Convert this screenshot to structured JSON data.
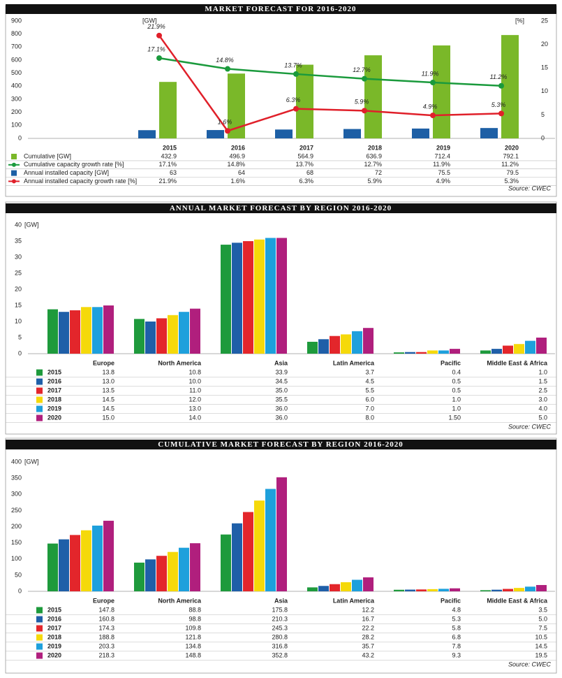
{
  "chart_data": [
    {
      "type": "combo",
      "title": "MARKET FORECAST FOR 2016-2020",
      "categories": [
        "2015",
        "2016",
        "2017",
        "2018",
        "2019",
        "2020"
      ],
      "series": [
        {
          "name": "Cumulative [GW]",
          "type": "bar",
          "color": "#7ab829",
          "values": [
            432.9,
            496.9,
            564.9,
            636.9,
            712.4,
            792.1
          ]
        },
        {
          "name": "Cumulative capacity growth rate [%]",
          "type": "line",
          "axis": "y2",
          "color": "#1a9a3c",
          "values": [
            17.1,
            14.8,
            13.7,
            12.7,
            11.9,
            11.2
          ],
          "value_labels": [
            "17.1%",
            "14.8%",
            "13.7%",
            "12.7%",
            "11.9%",
            "11.2%"
          ]
        },
        {
          "name": "Annual installed capacity [GW]",
          "type": "bar",
          "color": "#1d5fa5",
          "values": [
            63,
            64,
            68,
            72,
            75.5,
            79.5
          ]
        },
        {
          "name": "Annual installed capacity growth rate [%]",
          "type": "line",
          "axis": "y2",
          "color": "#e0202a",
          "values": [
            21.9,
            1.6,
            6.3,
            5.9,
            4.9,
            5.3
          ],
          "value_labels": [
            "21.9%",
            "1.6%",
            "6.3%",
            "5.9%",
            "4.9%",
            "5.3%"
          ]
        }
      ],
      "ylim": [
        0,
        900
      ],
      "yticks": [
        0,
        100,
        200,
        300,
        400,
        500,
        600,
        700,
        800,
        900
      ],
      "y_unit": "[GW]",
      "y2lim": [
        0,
        25
      ],
      "y2ticks": [
        0,
        5,
        10,
        15,
        20,
        25
      ],
      "y2_unit": "[%]",
      "source": "Source: CWEC"
    },
    {
      "type": "bar",
      "title": "ANNUAL MARKET FORECAST BY REGION 2016-2020",
      "categories": [
        "Europe",
        "North America",
        "Asia",
        "Latin America",
        "Pacific",
        "Middle East & Africa"
      ],
      "series": [
        {
          "name": "2015",
          "color": "#1e9a3c",
          "values": [
            13.8,
            10.8,
            33.9,
            3.7,
            0.4,
            1.0
          ],
          "value_labels": [
            "13.8",
            "10.8",
            "33.9",
            "3.7",
            "0.4",
            "1.0"
          ]
        },
        {
          "name": "2016",
          "color": "#1f5fa8",
          "values": [
            13.0,
            10.0,
            34.5,
            4.5,
            0.5,
            1.5
          ],
          "value_labels": [
            "13.0",
            "10.0",
            "34.5",
            "4.5",
            "0.5",
            "1.5"
          ]
        },
        {
          "name": "2017",
          "color": "#e3262b",
          "values": [
            13.5,
            11.0,
            35.0,
            5.5,
            0.5,
            2.5
          ],
          "value_labels": [
            "13.5",
            "11.0",
            "35.0",
            "5.5",
            "0.5",
            "2.5"
          ]
        },
        {
          "name": "2018",
          "color": "#f5d90a",
          "values": [
            14.5,
            12.0,
            35.5,
            6.0,
            1.0,
            3.0
          ],
          "value_labels": [
            "14.5",
            "12.0",
            "35.5",
            "6.0",
            "1.0",
            "3.0"
          ]
        },
        {
          "name": "2019",
          "color": "#1ea0dc",
          "values": [
            14.5,
            13.0,
            36.0,
            7.0,
            1.0,
            4.0
          ],
          "value_labels": [
            "14.5",
            "13.0",
            "36.0",
            "7.0",
            "1.0",
            "4.0"
          ]
        },
        {
          "name": "2020",
          "color": "#b01f7d",
          "values": [
            15.0,
            14.0,
            36.0,
            8.0,
            1.5,
            5.0
          ],
          "value_labels": [
            "15.0",
            "14.0",
            "36.0",
            "8.0",
            "1.50",
            "5.0"
          ]
        }
      ],
      "ylim": [
        0,
        40
      ],
      "yticks": [
        0,
        5,
        10,
        15,
        20,
        25,
        30,
        35,
        40
      ],
      "y_unit": "[GW]",
      "source": "Source: CWEC"
    },
    {
      "type": "bar",
      "title": "CUMULATIVE MARKET FORECAST BY REGION 2016-2020",
      "categories": [
        "Europe",
        "North America",
        "Asia",
        "Latin America",
        "Pacific",
        "Middle East & Africa"
      ],
      "series": [
        {
          "name": "2015",
          "color": "#1e9a3c",
          "values": [
            147.8,
            88.8,
            175.8,
            12.2,
            4.8,
            3.5
          ],
          "value_labels": [
            "147.8",
            "88.8",
            "175.8",
            "12.2",
            "4.8",
            "3.5"
          ]
        },
        {
          "name": "2016",
          "color": "#1f5fa8",
          "values": [
            160.8,
            98.8,
            210.3,
            16.7,
            5.3,
            5.0
          ],
          "value_labels": [
            "160.8",
            "98.8",
            "210.3",
            "16.7",
            "5.3",
            "5.0"
          ]
        },
        {
          "name": "2017",
          "color": "#e3262b",
          "values": [
            174.3,
            109.8,
            245.3,
            22.2,
            5.8,
            7.5
          ],
          "value_labels": [
            "174.3",
            "109.8",
            "245.3",
            "22.2",
            "5.8",
            "7.5"
          ]
        },
        {
          "name": "2018",
          "color": "#f5d90a",
          "values": [
            188.8,
            121.8,
            280.8,
            28.2,
            6.8,
            10.5
          ],
          "value_labels": [
            "188.8",
            "121.8",
            "280.8",
            "28.2",
            "6.8",
            "10.5"
          ]
        },
        {
          "name": "2019",
          "color": "#1ea0dc",
          "values": [
            203.3,
            134.8,
            316.8,
            35.7,
            7.8,
            14.5
          ],
          "value_labels": [
            "203.3",
            "134.8",
            "316.8",
            "35.7",
            "7.8",
            "14.5"
          ]
        },
        {
          "name": "2020",
          "color": "#b01f7d",
          "values": [
            218.3,
            148.8,
            352.8,
            43.2,
            9.3,
            19.5
          ],
          "value_labels": [
            "218.3",
            "148.8",
            "352.8",
            "43.2",
            "9.3",
            "19.5"
          ]
        }
      ],
      "ylim": [
        0,
        400
      ],
      "yticks": [
        0,
        50,
        100,
        150,
        200,
        250,
        300,
        350,
        400
      ],
      "y_unit": "[GW]",
      "source": "Source: CWEC"
    }
  ]
}
